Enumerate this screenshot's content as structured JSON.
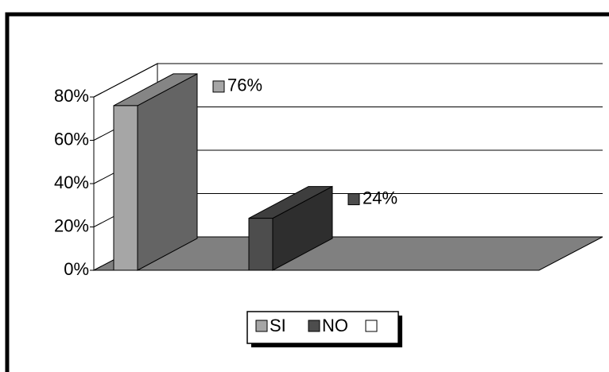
{
  "chart_data": {
    "type": "bar3d",
    "series": [
      {
        "name": "SI",
        "color": "#a6a6a6",
        "values": [
          76
        ],
        "value_labels": [
          "76%"
        ]
      },
      {
        "name": "NO",
        "color": "#4d4d4d",
        "values": [
          24
        ],
        "value_labels": [
          "24%"
        ]
      }
    ],
    "ylim": [
      0,
      80
    ],
    "yticks": [
      {
        "value": 0,
        "label": "0%"
      },
      {
        "value": 20,
        "label": "20%"
      },
      {
        "value": 40,
        "label": "40%"
      },
      {
        "value": 60,
        "label": "60%"
      },
      {
        "value": 80,
        "label": "80%"
      }
    ],
    "grid": true,
    "legend": "bottom"
  }
}
